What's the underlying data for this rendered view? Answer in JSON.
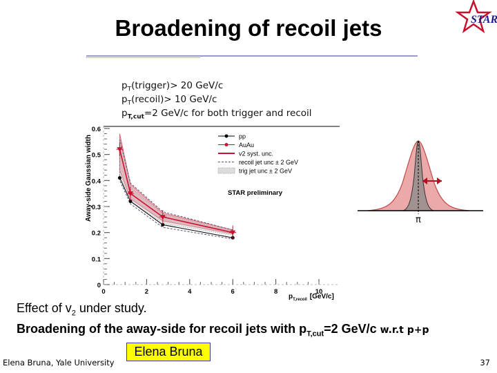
{
  "slide": {
    "title": "Broadening of recoil jets",
    "logo_text": "STAR",
    "conditions": [
      {
        "main": "p",
        "sub": "T",
        "rest": "(trigger)> 20 GeV/c"
      },
      {
        "main": "p",
        "sub": "T",
        "rest": "(recoil)> 10 GeV/c"
      },
      {
        "main": "p",
        "sub": "T,cut",
        "rest": "=2 GeV/c for both trigger and recoil"
      }
    ],
    "line1": {
      "a": "Effect of v",
      "sub": "2",
      "b": " under study."
    },
    "line2": {
      "a": "Broadening of the away-side for recoil jets with p",
      "sub": "T,cut",
      "b": "=2 GeV/c",
      "c": " w.r.t p+p"
    },
    "footer_left": "Elena Bruna, Yale University",
    "name_box": "Elena Bruna",
    "page_number": "37",
    "pi_label": "π"
  },
  "colors": {
    "pp": "#000000",
    "auau": "#cc1133",
    "v2band": "#e06878",
    "recoil": "#555577",
    "trig": "#999999",
    "gauss_wide": "#e58c8c",
    "gauss_narrow": "#777777",
    "title_rule": "#9a98c8",
    "name_box_fill": "#ffff00"
  },
  "chart_data": {
    "type": "scatter",
    "ylabel": "Away-side Gaussian width",
    "xlabel": "p",
    "xlabel_sub": "T,recoil",
    "xlabel_unit": "[GeV/c]",
    "xlim": [
      0,
      10
    ],
    "ylim": [
      0,
      0.6
    ],
    "xticks": [
      0,
      2,
      4,
      6,
      8,
      10
    ],
    "yticks": [
      0,
      0.1,
      0.2,
      0.3,
      0.4,
      0.5,
      0.6
    ],
    "ytick_labels": [
      "0",
      "0.1",
      "0.2",
      "0.3",
      "0.4",
      "0.5",
      "0.6"
    ],
    "series": [
      {
        "name": "pp",
        "x": [
          0.75,
          1.25,
          2.75,
          6.0
        ],
        "y": [
          0.41,
          0.32,
          0.23,
          0.18
        ]
      },
      {
        "name": "AuAu",
        "x": [
          0.75,
          1.25,
          2.75,
          6.0
        ],
        "y": [
          0.52,
          0.35,
          0.26,
          0.2
        ]
      }
    ],
    "bands": [
      {
        "name": "v2 syst. unc.",
        "x": [
          0.75,
          1.25,
          2.75,
          6.0
        ],
        "low": [
          0.44,
          0.33,
          0.245,
          0.195
        ],
        "high": [
          0.58,
          0.385,
          0.275,
          0.21
        ]
      },
      {
        "name": "recoil jet unc ± 2 GeV",
        "x": [
          0.75,
          1.25,
          2.75,
          6.0
        ],
        "low": [
          0.4,
          0.31,
          0.22,
          0.175
        ],
        "high": [
          0.56,
          0.39,
          0.28,
          0.21
        ]
      },
      {
        "name": "trig jet unc ± 2 GeV",
        "x": [
          0.75,
          1.25,
          2.75,
          6.0
        ],
        "low": [
          0.42,
          0.32,
          0.235,
          0.19
        ],
        "high": [
          0.56,
          0.375,
          0.27,
          0.205
        ]
      }
    ],
    "legend": [
      "pp",
      "AuAu",
      "v2 syst. unc.",
      "recoil jet unc ± 2 GeV",
      "trig jet unc ± 2 GeV"
    ],
    "annotation": "STAR preliminary",
    "legend_position": "top-right"
  }
}
